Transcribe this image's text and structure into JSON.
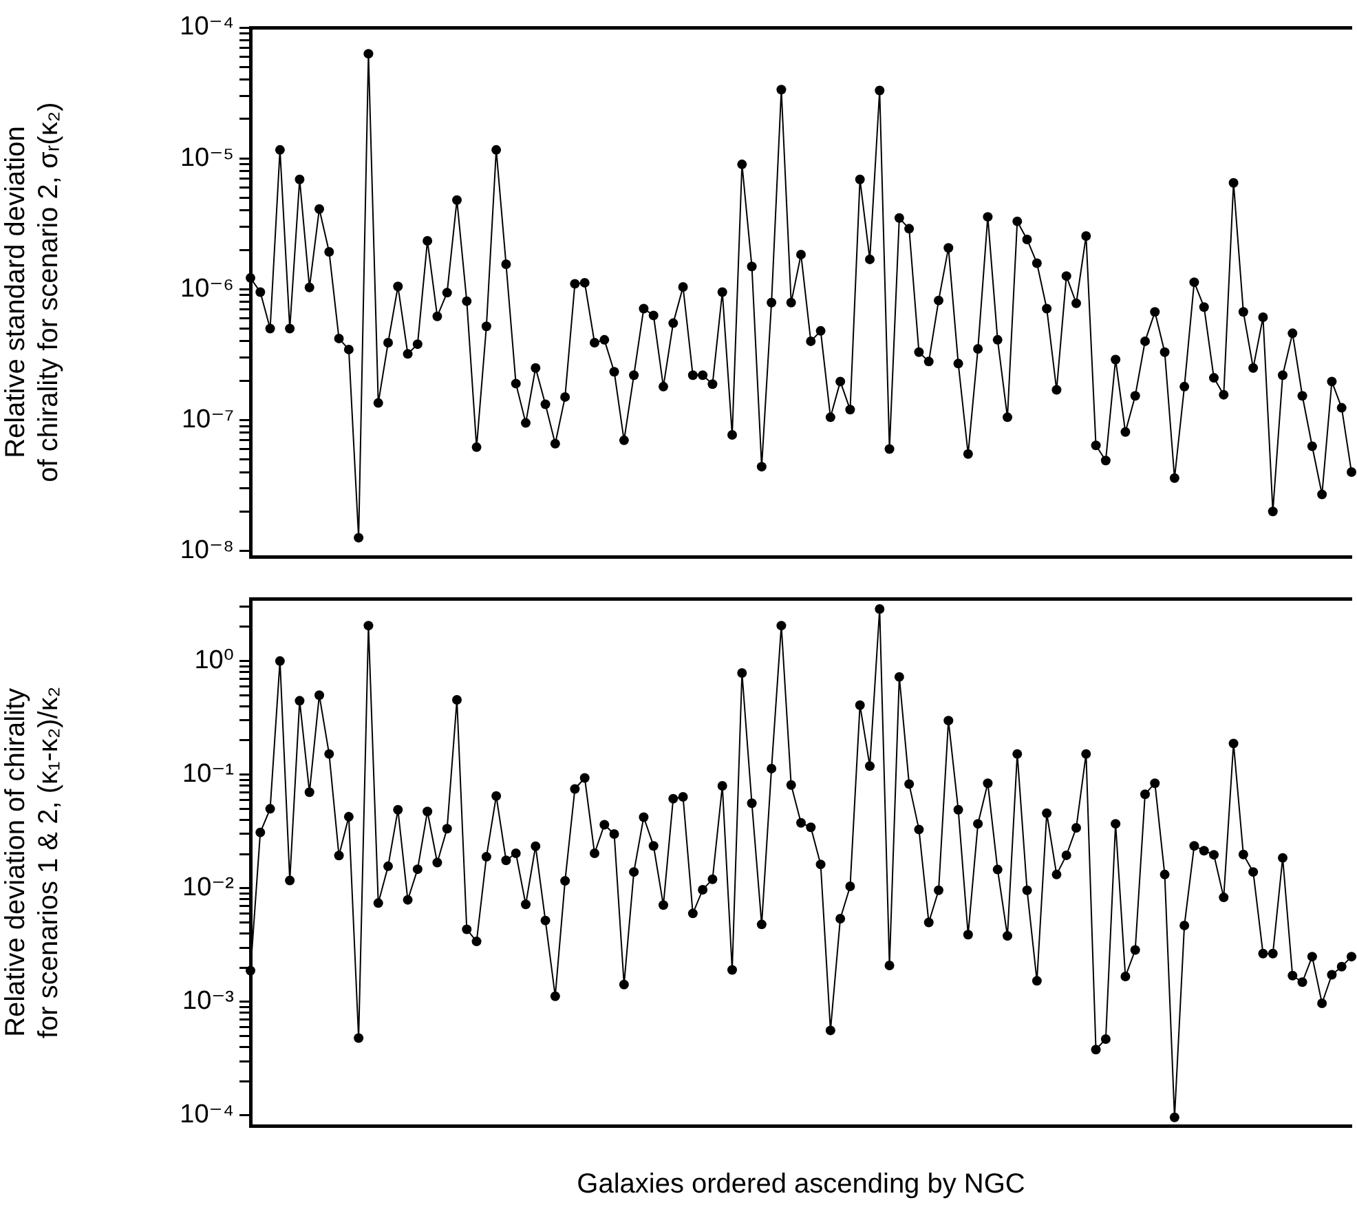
{
  "chart_data": [
    {
      "type": "line",
      "ylabel": "Relative standard deviation\nof chirality for scenario 2, σᵣ(κ₂)",
      "log": true,
      "marker": "circle",
      "tick_labels": "y",
      "categories": [
        null,
        null,
        null,
        null,
        null,
        null,
        null,
        null,
        null,
        null,
        null,
        null,
        null,
        null,
        null,
        null,
        null,
        null,
        null,
        null,
        null,
        null,
        null,
        null,
        null,
        null,
        null,
        null,
        null,
        null,
        null,
        null,
        null,
        null,
        null,
        null,
        null,
        null,
        null,
        null,
        null,
        null,
        null,
        null,
        null,
        null,
        null,
        null,
        null,
        null,
        null,
        null,
        null,
        null,
        null,
        null,
        null,
        null,
        null,
        null,
        null,
        null,
        null,
        null,
        null,
        null,
        null,
        null,
        null,
        null,
        null,
        null,
        null,
        null,
        null,
        null,
        null,
        null,
        null,
        null,
        null,
        null,
        null,
        null,
        null,
        null,
        null,
        null,
        null,
        null,
        null,
        null,
        null,
        null,
        null,
        null,
        null,
        null,
        null,
        null,
        null,
        null,
        null,
        null,
        null,
        null,
        null,
        null,
        null,
        null,
        null,
        null,
        null
      ],
      "series": [
        {
          "color": "#000000",
          "values": [
            1.22e-06,
            9.5e-07,
            5e-07,
            1.16e-05,
            5e-07,
            6.9e-06,
            1.03e-06,
            4.1e-06,
            1.93e-06,
            4.2e-07,
            3.46e-07,
            1.26e-08,
            6.3e-05,
            1.35e-07,
            3.9e-07,
            1.05e-06,
            3.2e-07,
            3.8e-07,
            2.34e-06,
            6.2e-07,
            9.4e-07,
            4.8e-06,
            8.1e-07,
            6.2e-08,
            5.2e-07,
            1.16e-05,
            1.55e-06,
            1.9e-07,
            9.5e-08,
            2.5e-07,
            1.32e-07,
            6.6e-08,
            1.5e-07,
            1.1e-06,
            1.12e-06,
            3.9e-07,
            4.1e-07,
            2.34e-07,
            7e-08,
            2.2e-07,
            7.1e-07,
            6.3e-07,
            1.8e-07,
            5.5e-07,
            1.04e-06,
            2.2e-07,
            2.2e-07,
            1.88e-07,
            9.5e-07,
            7.7e-08,
            9e-06,
            1.49e-06,
            4.4e-08,
            7.9e-07,
            3.35e-05,
            7.9e-07,
            1.84e-06,
            4e-07,
            4.8e-07,
            1.05e-07,
            1.97e-07,
            1.2e-07,
            6.9e-06,
            1.69e-06,
            3.3e-05,
            6e-08,
            3.5e-06,
            2.9e-06,
            3.3e-07,
            2.8e-07,
            8.2e-07,
            2.07e-06,
            2.7e-07,
            5.5e-08,
            3.5e-07,
            3.57e-06,
            4.1e-07,
            1.05e-07,
            3.3e-06,
            2.4e-06,
            1.58e-06,
            7.1e-07,
            1.7e-07,
            1.26e-06,
            7.8e-07,
            2.55e-06,
            6.4e-08,
            4.9e-08,
            2.9e-07,
            8.1e-08,
            1.53e-07,
            4e-07,
            6.7e-07,
            3.3e-07,
            3.6e-08,
            1.8e-07,
            1.13e-06,
            7.3e-07,
            2.1e-07,
            1.56e-07,
            6.5e-06,
            6.7e-07,
            2.5e-07,
            6.1e-07,
            2e-08,
            2.2e-07,
            4.6e-07,
            1.53e-07,
            6.3e-08,
            2.7e-08,
            1.97e-07,
            1.24e-07,
            4e-08
          ]
        }
      ],
      "ylim": [
        9.1e-09,
        0.0001
      ],
      "yticks": [
        {
          "value": 1e-08,
          "label": "10⁻⁸"
        },
        {
          "value": 2e-08,
          "label": null
        },
        {
          "value": 3e-08,
          "label": null
        },
        {
          "value": 4e-08,
          "label": null
        },
        {
          "value": 5e-08,
          "label": null
        },
        {
          "value": 6e-08,
          "label": null
        },
        {
          "value": 7e-08,
          "label": null
        },
        {
          "value": 8e-08,
          "label": null
        },
        {
          "value": 9e-08,
          "label": null
        },
        {
          "value": 1e-07,
          "label": "10⁻⁷"
        },
        {
          "value": 2e-07,
          "label": null
        },
        {
          "value": 3e-07,
          "label": null
        },
        {
          "value": 4e-07,
          "label": null
        },
        {
          "value": 5e-07,
          "label": null
        },
        {
          "value": 6e-07,
          "label": null
        },
        {
          "value": 7e-07,
          "label": null
        },
        {
          "value": 8e-07,
          "label": null
        },
        {
          "value": 9e-07,
          "label": null
        },
        {
          "value": 1e-06,
          "label": "10⁻⁶"
        },
        {
          "value": 2e-06,
          "label": null
        },
        {
          "value": 3e-06,
          "label": null
        },
        {
          "value": 4e-06,
          "label": null
        },
        {
          "value": 5e-06,
          "label": null
        },
        {
          "value": 6e-06,
          "label": null
        },
        {
          "value": 7e-06,
          "label": null
        },
        {
          "value": 8e-06,
          "label": null
        },
        {
          "value": 9e-06,
          "label": null
        },
        {
          "value": 1e-05,
          "label": "10⁻⁵"
        },
        {
          "value": 2e-05,
          "label": null
        },
        {
          "value": 3e-05,
          "label": null
        },
        {
          "value": 4e-05,
          "label": null
        },
        {
          "value": 5e-05,
          "label": null
        },
        {
          "value": 6e-05,
          "label": null
        },
        {
          "value": 7e-05,
          "label": null
        },
        {
          "value": 8e-05,
          "label": null
        },
        {
          "value": 9e-05,
          "label": null
        },
        {
          "value": 0.0001,
          "label": "10⁻⁴"
        }
      ]
    },
    {
      "type": "line",
      "ylabel": "Relative deviation of chirality\nfor scenarios 1 & 2, (κ₁-κ₂)/κ₂",
      "xlabel": "Galaxies ordered ascending by NGC",
      "log": true,
      "marker": "circle",
      "tick_labels": "y",
      "categories": [
        null,
        null,
        null,
        null,
        null,
        null,
        null,
        null,
        null,
        null,
        null,
        null,
        null,
        null,
        null,
        null,
        null,
        null,
        null,
        null,
        null,
        null,
        null,
        null,
        null,
        null,
        null,
        null,
        null,
        null,
        null,
        null,
        null,
        null,
        null,
        null,
        null,
        null,
        null,
        null,
        null,
        null,
        null,
        null,
        null,
        null,
        null,
        null,
        null,
        null,
        null,
        null,
        null,
        null,
        null,
        null,
        null,
        null,
        null,
        null,
        null,
        null,
        null,
        null,
        null,
        null,
        null,
        null,
        null,
        null,
        null,
        null,
        null,
        null,
        null,
        null,
        null,
        null,
        null,
        null,
        null,
        null,
        null,
        null,
        null,
        null,
        null,
        null,
        null,
        null,
        null,
        null,
        null,
        null,
        null,
        null,
        null,
        null,
        null,
        null,
        null,
        null,
        null,
        null,
        null,
        null,
        null,
        null,
        null,
        null,
        null,
        null,
        null
      ],
      "series": [
        {
          "color": "#000000",
          "values": [
            0.00188,
            0.031,
            0.05,
            1.0,
            0.0117,
            0.447,
            0.07,
            0.5,
            0.152,
            0.0194,
            0.0426,
            0.00048,
            2.05,
            0.0074,
            0.0156,
            0.049,
            0.0079,
            0.0147,
            0.0474,
            0.0168,
            0.0334,
            0.455,
            0.00435,
            0.0034,
            0.0189,
            0.0648,
            0.0176,
            0.0203,
            0.0072,
            0.0234,
            0.0052,
            0.00112,
            0.0116,
            0.0748,
            0.0935,
            0.0203,
            0.0362,
            0.03,
            0.00142,
            0.0139,
            0.0422,
            0.0236,
            0.0071,
            0.0614,
            0.0637,
            0.006,
            0.0097,
            0.012,
            0.0796,
            0.00191,
            0.785,
            0.056,
            0.0048,
            0.113,
            2.05,
            0.081,
            0.0376,
            0.0344,
            0.0162,
            0.00056,
            0.0054,
            0.0104,
            0.409,
            0.119,
            2.87,
            0.00209,
            0.725,
            0.0826,
            0.0329,
            0.005,
            0.0096,
            0.299,
            0.049,
            0.0039,
            0.0369,
            0.084,
            0.0146,
            0.0038,
            0.152,
            0.0096,
            0.00153,
            0.0457,
            0.0132,
            0.0195,
            0.034,
            0.152,
            0.00038,
            0.00047,
            0.0369,
            0.00167,
            0.00286,
            0.0672,
            0.084,
            0.0132,
            9.6e-05,
            0.0047,
            0.0236,
            0.0214,
            0.0197,
            0.0083,
            0.188,
            0.0198,
            0.0139,
            0.00266,
            0.00266,
            0.0185,
            0.0017,
            0.00149,
            0.0025,
            0.00097,
            0.00173,
            0.00204,
            0.0025
          ]
        }
      ],
      "ylim": [
        8.1e-05,
        3.5
      ],
      "yticks": [
        {
          "value": 0.0001,
          "label": "10⁻⁴"
        },
        {
          "value": 0.0002,
          "label": null
        },
        {
          "value": 0.0003,
          "label": null
        },
        {
          "value": 0.0004,
          "label": null
        },
        {
          "value": 0.0005,
          "label": null
        },
        {
          "value": 0.0006,
          "label": null
        },
        {
          "value": 0.0007,
          "label": null
        },
        {
          "value": 0.0008,
          "label": null
        },
        {
          "value": 0.0009,
          "label": null
        },
        {
          "value": 0.001,
          "label": "10⁻³"
        },
        {
          "value": 0.002,
          "label": null
        },
        {
          "value": 0.003,
          "label": null
        },
        {
          "value": 0.004,
          "label": null
        },
        {
          "value": 0.005,
          "label": null
        },
        {
          "value": 0.006,
          "label": null
        },
        {
          "value": 0.007,
          "label": null
        },
        {
          "value": 0.008,
          "label": null
        },
        {
          "value": 0.009,
          "label": null
        },
        {
          "value": 0.01,
          "label": "10⁻²"
        },
        {
          "value": 0.02,
          "label": null
        },
        {
          "value": 0.03,
          "label": null
        },
        {
          "value": 0.04,
          "label": null
        },
        {
          "value": 0.05,
          "label": null
        },
        {
          "value": 0.06,
          "label": null
        },
        {
          "value": 0.07,
          "label": null
        },
        {
          "value": 0.08,
          "label": null
        },
        {
          "value": 0.09,
          "label": null
        },
        {
          "value": 0.1,
          "label": "10⁻¹"
        },
        {
          "value": 0.2,
          "label": null
        },
        {
          "value": 0.3,
          "label": null
        },
        {
          "value": 0.4,
          "label": null
        },
        {
          "value": 0.5,
          "label": null
        },
        {
          "value": 0.6,
          "label": null
        },
        {
          "value": 0.7,
          "label": null
        },
        {
          "value": 0.8,
          "label": null
        },
        {
          "value": 0.9,
          "label": null
        },
        {
          "value": 1,
          "label": "10⁰"
        },
        {
          "value": 2,
          "label": null
        },
        {
          "value": 3,
          "label": null
        }
      ]
    }
  ]
}
